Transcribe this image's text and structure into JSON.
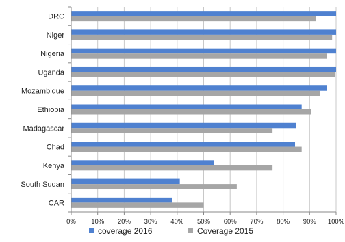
{
  "chart_data": {
    "type": "bar",
    "orientation": "horizontal",
    "categories": [
      "DRC",
      "Niger",
      "Nigeria",
      "Uganda",
      "Mozambique",
      "Ethiopia",
      "Madagascar",
      "Chad",
      "Kenya",
      "South Sudan",
      "CAR"
    ],
    "series": [
      {
        "name": "coverage 2016",
        "color": "#4f81d0",
        "values": [
          100,
          100,
          100,
          100,
          96.5,
          87,
          85,
          84.5,
          54,
          41,
          38
        ]
      },
      {
        "name": "Coverage 2015",
        "color": "#a6a6a6",
        "values": [
          92.5,
          98.5,
          96.5,
          99.5,
          94,
          90.5,
          76,
          87,
          76,
          62.5,
          50
        ]
      }
    ],
    "xticks": [
      "0%",
      "10%",
      "20%",
      "30%",
      "40%",
      "50%",
      "60%",
      "70%",
      "80%",
      "90%",
      "100%"
    ],
    "xlim": [
      0,
      100
    ],
    "unit": "%",
    "grid": "vertical",
    "legend": "bottom",
    "title": "",
    "xlabel": "",
    "ylabel": ""
  }
}
